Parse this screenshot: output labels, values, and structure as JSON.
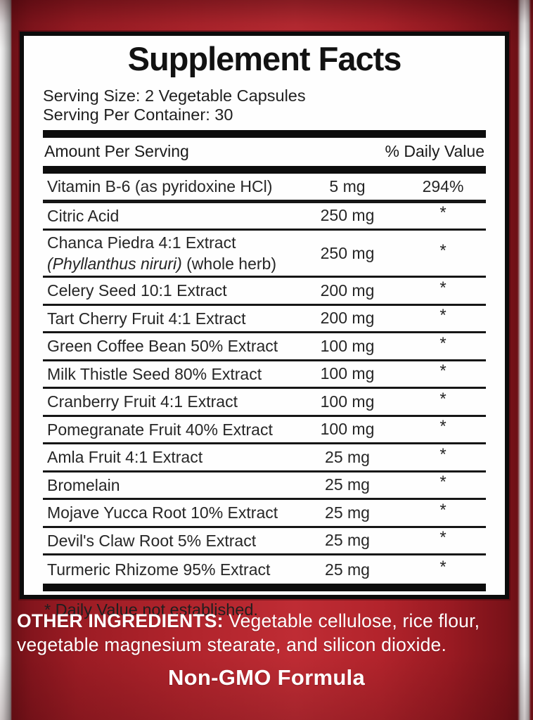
{
  "panel": {
    "title": "Supplement Facts",
    "serving_size": "Serving Size: 2 Vegetable Capsules",
    "serving_per_container": "Serving Per Container: 30",
    "columns": {
      "amount_header": "Amount Per Serving",
      "dv_header": "% Daily Value"
    },
    "rows": [
      {
        "name": "Vitamin B-6 (as pyridoxine HCl)",
        "amount": "5 mg",
        "dv": "294%"
      },
      {
        "name": "Citric Acid",
        "amount": "250 mg",
        "dv": "*"
      },
      {
        "name": "Chanca Piedra 4:1 Extract",
        "sub_italic": "(Phyllanthus niruri)",
        "sub_regular": " (whole herb)",
        "amount": "250 mg",
        "dv": "*"
      },
      {
        "name": "Celery Seed 10:1 Extract",
        "amount": "200 mg",
        "dv": "*"
      },
      {
        "name": "Tart Cherry Fruit 4:1 Extract",
        "amount": "200 mg",
        "dv": "*"
      },
      {
        "name": "Green Coffee Bean 50% Extract",
        "amount": "100 mg",
        "dv": "*"
      },
      {
        "name": "Milk Thistle Seed 80% Extract",
        "amount": "100 mg",
        "dv": "*"
      },
      {
        "name": "Cranberry Fruit 4:1 Extract",
        "amount": "100 mg",
        "dv": "*"
      },
      {
        "name": "Pomegranate Fruit 40% Extract",
        "amount": "100 mg",
        "dv": "*"
      },
      {
        "name": "Amla Fruit 4:1 Extract",
        "amount": "25 mg",
        "dv": "*"
      },
      {
        "name": "Bromelain",
        "amount": "25 mg",
        "dv": "*"
      },
      {
        "name": "Mojave Yucca Root 10% Extract",
        "amount": "25 mg",
        "dv": "*"
      },
      {
        "name": "Devil's Claw Root 5% Extract",
        "amount": "25 mg",
        "dv": "*"
      },
      {
        "name": "Turmeric Rhizome 95% Extract",
        "amount": "25 mg",
        "dv": "*"
      }
    ],
    "footnote": "* Daily Value not established."
  },
  "bottom": {
    "other_ingredients_label": "OTHER INGREDIENTS:",
    "other_ingredients_text": " Vegetable cellulose, rice flour, vegetable magnesium stearate, and silicon dioxide.",
    "non_gmo": "Non-GMO Formula"
  },
  "colors": {
    "label_red_bright": "#bf2c34",
    "label_red_dark": "#6d1016",
    "panel_background": "#fefefe",
    "panel_border": "#0c0c0c",
    "rule_black": "#0d0d0d",
    "text_dark": "#262626",
    "text_white": "#ffffff",
    "edge_highlight": "#f2f2f2"
  }
}
